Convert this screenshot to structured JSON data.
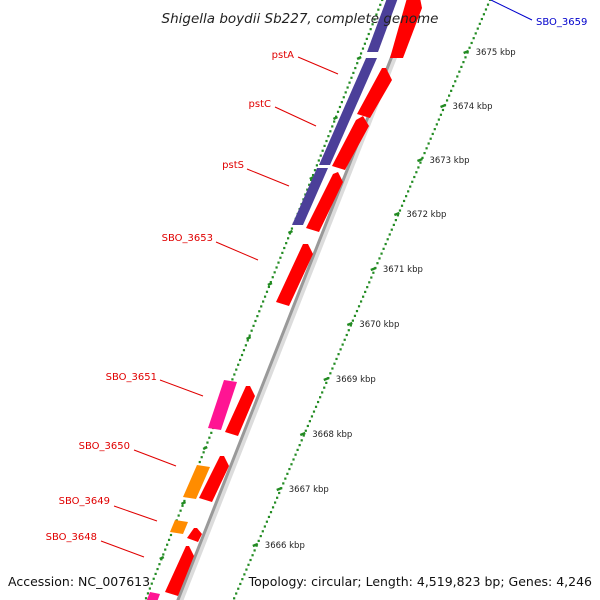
{
  "title": "Shigella boydii Sb227, complete genome",
  "accession": "Accession: NC_007613",
  "topology": "Topology: circular; Length: 4,519,823 bp; Genes: 4,246",
  "tick_unit": "kbp",
  "colors": {
    "background": "#ffffff",
    "backbone": "#999999",
    "cds_forward": "#ff0000",
    "operon_blue": "#4b3f99",
    "orange": "#ff8c00",
    "magenta": "#ff1493",
    "label_red": "#e00000",
    "label_blue": "#0000cc",
    "ticks_green": "#228b22"
  },
  "gene_labels": [
    {
      "name": "SBO_3659",
      "color": "blue"
    },
    {
      "name": "pstA",
      "color": "red"
    },
    {
      "name": "pstC",
      "color": "red"
    },
    {
      "name": "pstS",
      "color": "red"
    },
    {
      "name": "SBO_3653",
      "color": "red"
    },
    {
      "name": "SBO_3651",
      "color": "red"
    },
    {
      "name": "SBO_3650",
      "color": "red"
    },
    {
      "name": "SBO_3649",
      "color": "red"
    },
    {
      "name": "SBO_3648",
      "color": "red"
    }
  ],
  "ticks_kbp": [
    3675,
    3674,
    3673,
    3672,
    3671,
    3670,
    3669,
    3668,
    3667,
    3666
  ]
}
